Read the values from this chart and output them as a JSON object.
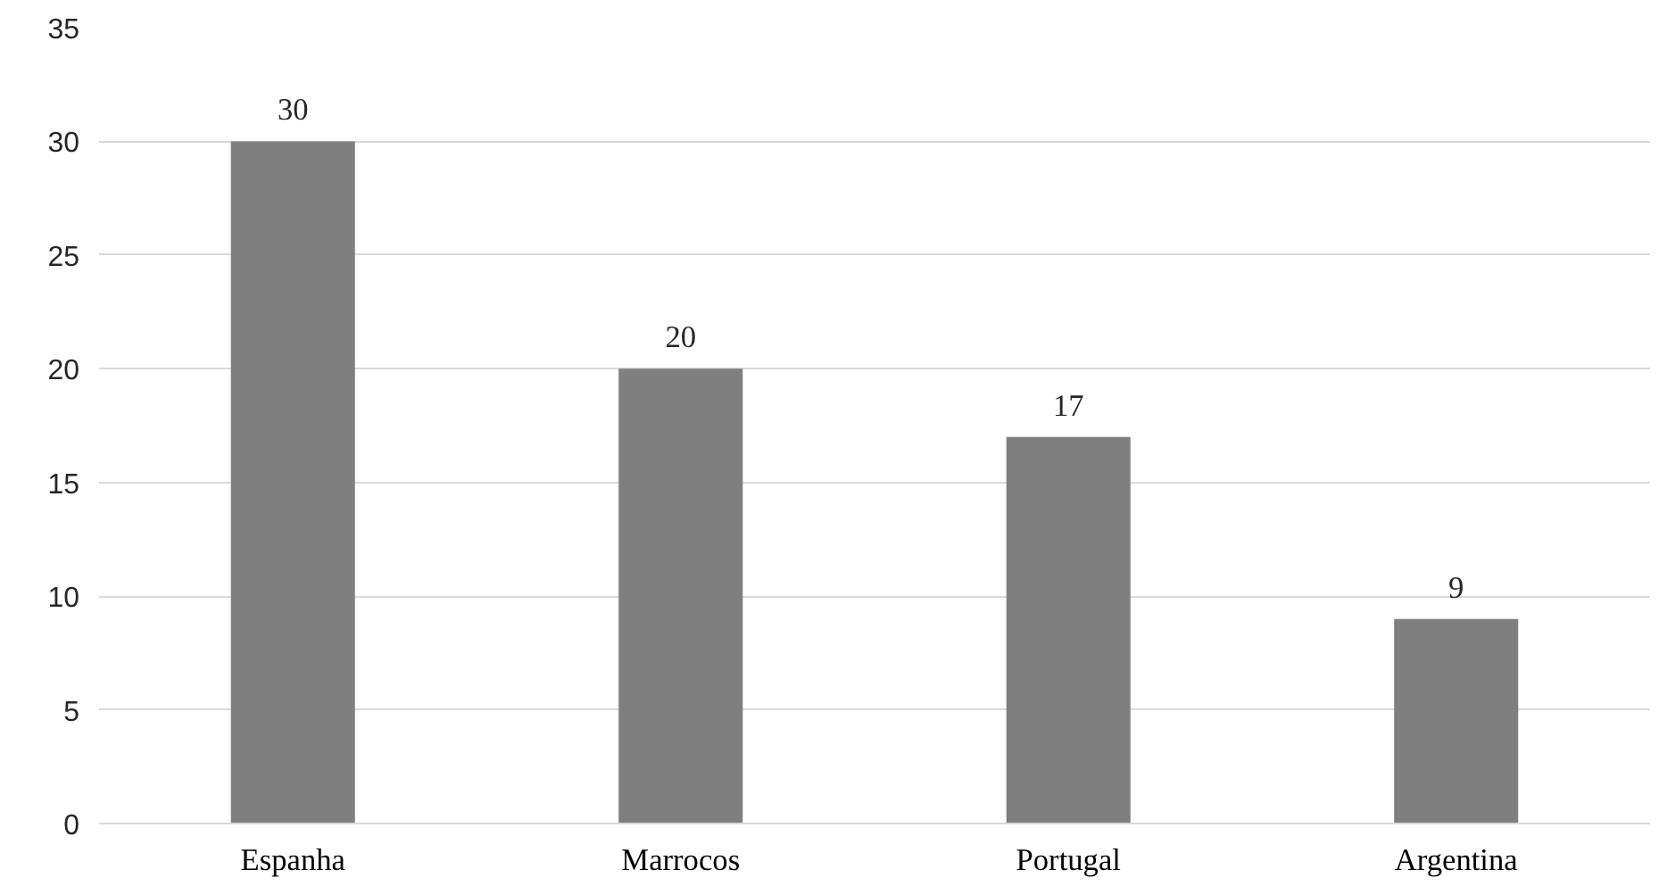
{
  "chart_data": {
    "type": "bar",
    "categories": [
      "Espanha",
      "Marrocos",
      "Portugal",
      "Argentina"
    ],
    "values": [
      30,
      20,
      17,
      9
    ],
    "color": "#7f7f7f",
    "ylim": [
      0,
      35
    ],
    "yticks": [
      0,
      5,
      10,
      15,
      20,
      25,
      30,
      35
    ],
    "grid": "y",
    "data_labels": true
  }
}
